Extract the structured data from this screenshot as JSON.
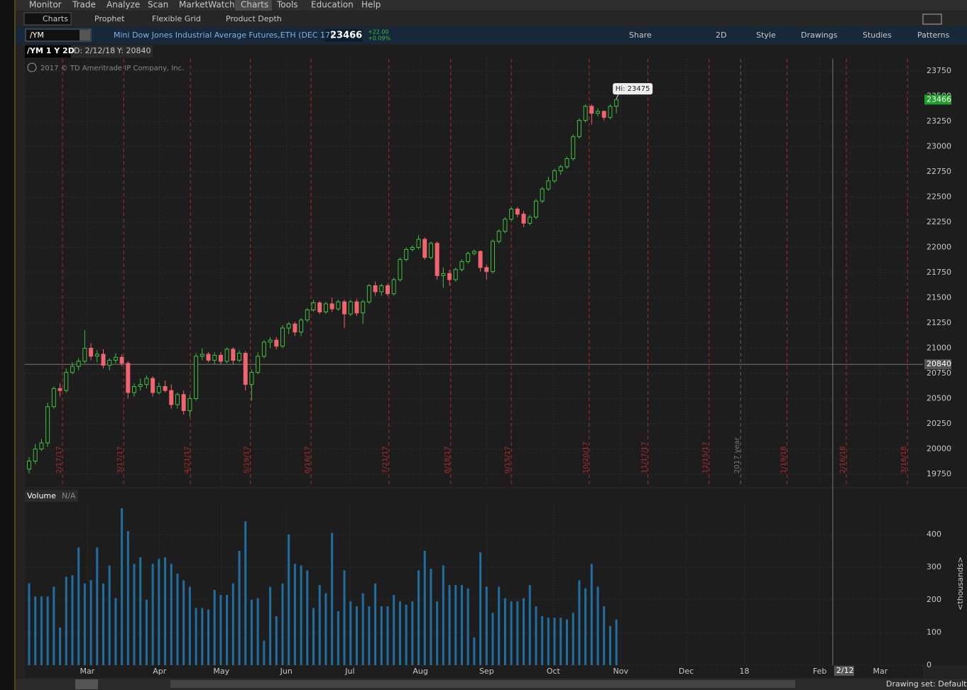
{
  "ui": {
    "menu": [
      "Monitor",
      "Trade",
      "Analyze",
      "Scan",
      "MarketWatch",
      "Charts",
      "Tools",
      "Education",
      "Help"
    ],
    "tabs": [
      "Charts",
      "Prophet",
      "Flexible Grid",
      "Product Depth"
    ],
    "symbol": "/YM",
    "description": "Mini Dow Jones Industrial Average Futures,ETH (DEC 17)",
    "last_price": "23466",
    "change": "+22.00",
    "change_pct": "+0.09%",
    "tools": [
      "Share",
      "2D",
      "Style",
      "Drawings",
      "Studies",
      "Patterns"
    ],
    "drawing_set": "Drawing set: Default"
  },
  "chart_data": [
    {
      "type": "candlestick",
      "title": "/YM 1 Y 2D",
      "cursor_date": "D: 2/12/18",
      "cursor_value": "Y: 20840",
      "copyright": "2017 © TD Ameritrade IP Company, Inc.",
      "up_color": "#3fbf3f",
      "down_color": "#f06470",
      "date_line_color": "#b02a2a",
      "open": [
        19800,
        19880,
        20000,
        20060,
        20420,
        20600,
        20580,
        20760,
        20820,
        20870,
        21000,
        20920,
        20940,
        20830,
        20880,
        20910,
        20850,
        20560,
        20620,
        20640,
        20700,
        20560,
        20620,
        20580,
        20440,
        20540,
        20380,
        20500,
        20920,
        20940,
        20880,
        20930,
        20870,
        20990,
        20880,
        20950,
        20640,
        20760,
        20920,
        21060,
        21080,
        21020,
        21200,
        21240,
        21160,
        21280,
        21380,
        21450,
        21360,
        21440,
        21390,
        21460,
        21340,
        21460,
        21350,
        21460,
        21620,
        21560,
        21620,
        21540,
        21680,
        21880,
        21980,
        22000,
        22080,
        21900,
        22040,
        21720,
        21740,
        21680,
        21780,
        21860,
        21940,
        21960,
        21800,
        21760,
        22060,
        22160,
        22280,
        22380,
        22330,
        22240,
        22300,
        22460,
        22580,
        22660,
        22760,
        22800,
        22880,
        23100,
        23260,
        23400,
        23330,
        23350,
        23290,
        23400
      ],
      "high": [
        19920,
        20050,
        20100,
        20460,
        20620,
        20650,
        20800,
        20860,
        20900,
        21180,
        21050,
        20980,
        20990,
        20900,
        20950,
        20940,
        20870,
        20650,
        20700,
        20730,
        20720,
        20660,
        20680,
        20640,
        20560,
        20580,
        20540,
        20950,
        21000,
        20960,
        20960,
        20960,
        21010,
        21010,
        20980,
        20970,
        20790,
        20960,
        21080,
        21110,
        21110,
        21230,
        21260,
        21260,
        21300,
        21400,
        21480,
        21470,
        21460,
        21500,
        21480,
        21480,
        21480,
        21490,
        21480,
        21640,
        21660,
        21640,
        21640,
        21700,
        21900,
        22000,
        22020,
        22120,
        22100,
        22060,
        22060,
        21800,
        21780,
        21800,
        21880,
        21960,
        21980,
        21970,
        21830,
        22080,
        22180,
        22300,
        22400,
        22400,
        22360,
        22320,
        22480,
        22600,
        22700,
        22780,
        22820,
        22900,
        23120,
        23280,
        23420,
        23420,
        23380,
        23360,
        23420,
        23475
      ],
      "low": [
        19760,
        19850,
        19980,
        20020,
        20400,
        20520,
        20560,
        20740,
        20780,
        20850,
        20880,
        20860,
        20800,
        20780,
        20850,
        20820,
        20500,
        20520,
        20580,
        20600,
        20520,
        20540,
        20560,
        20400,
        20400,
        20340,
        20320,
        20480,
        20880,
        20860,
        20840,
        20840,
        20850,
        20840,
        20860,
        20580,
        20480,
        20740,
        20900,
        21000,
        20990,
        21000,
        21140,
        21120,
        21120,
        21260,
        21360,
        21340,
        21340,
        21360,
        21370,
        21200,
        21320,
        21320,
        21240,
        21440,
        21520,
        21520,
        21520,
        21520,
        21660,
        21860,
        21960,
        21980,
        21880,
        21880,
        21680,
        21600,
        21620,
        21660,
        21760,
        21840,
        21920,
        21760,
        21680,
        21740,
        22040,
        22140,
        22260,
        22300,
        22200,
        22220,
        22280,
        22440,
        22560,
        22640,
        22720,
        22780,
        22860,
        23080,
        23240,
        23220,
        23300,
        23260,
        23270,
        23330
      ],
      "close": [
        19880,
        20000,
        20060,
        20420,
        20600,
        20580,
        20760,
        20820,
        20870,
        21000,
        20920,
        20940,
        20830,
        20880,
        20910,
        20850,
        20560,
        20620,
        20640,
        20700,
        20560,
        20620,
        20580,
        20440,
        20540,
        20380,
        20500,
        20920,
        20940,
        20880,
        20930,
        20870,
        20990,
        20880,
        20950,
        20640,
        20760,
        20920,
        21060,
        21080,
        21020,
        21200,
        21240,
        21160,
        21280,
        21380,
        21450,
        21360,
        21440,
        21390,
        21460,
        21340,
        21460,
        21350,
        21460,
        21620,
        21560,
        21620,
        21540,
        21680,
        21880,
        21980,
        22000,
        22080,
        21900,
        22040,
        21720,
        21740,
        21680,
        21780,
        21860,
        21940,
        21960,
        21800,
        21760,
        22060,
        22160,
        22280,
        22380,
        22330,
        22240,
        22300,
        22460,
        22580,
        22660,
        22760,
        22800,
        22880,
        23100,
        23260,
        23400,
        23330,
        23350,
        23290,
        23400,
        23466
      ],
      "xlim": [
        -0.69,
        144.6
      ],
      "ylim": [
        19630,
        23870
      ],
      "yticks": [
        19750,
        20000,
        20250,
        20500,
        20750,
        21000,
        21250,
        21500,
        21750,
        22000,
        22250,
        22500,
        22750,
        23000,
        23250,
        23500,
        23750
      ],
      "date_lines": [
        {
          "value": 5.4,
          "label": "2/17/17"
        },
        {
          "value": 15.3,
          "label": "3/17/17"
        },
        {
          "value": 26.1,
          "label": "4/21/17"
        },
        {
          "value": 35.8,
          "label": "5/19/17"
        },
        {
          "value": 45.6,
          "label": "6/16/17"
        },
        {
          "value": 58.2,
          "label": "7/21/17"
        },
        {
          "value": 68.2,
          "label": "8/18/17"
        },
        {
          "value": 78,
          "label": "9/15/17"
        },
        {
          "value": 90.6,
          "label": "10/20/17"
        },
        {
          "value": 100.1,
          "label": "11/17/17"
        },
        {
          "value": 110,
          "label": "12/15/17"
        },
        {
          "value": 122.6,
          "label": "1/19/18"
        },
        {
          "value": 132.2,
          "label": "2/16/18"
        },
        {
          "value": 142.1,
          "label": "3/16/18"
        }
      ],
      "year_line": {
        "value": 115.1,
        "label": "2017 year"
      },
      "high_marker": {
        "value": 23475,
        "label": "Hi: 23475"
      },
      "last": 23466,
      "crosshair": {
        "x": 130,
        "y": 20840,
        "x_label": "2/12"
      }
    },
    {
      "type": "bar",
      "title": "Volume",
      "subtitle": "N/A",
      "color": "#1f6fa3",
      "y_label": "<thousands>",
      "values": [
        250,
        210,
        210,
        210,
        240,
        115,
        270,
        275,
        360,
        250,
        260,
        360,
        250,
        305,
        205,
        480,
        410,
        310,
        330,
        200,
        310,
        325,
        330,
        310,
        280,
        260,
        240,
        175,
        175,
        170,
        230,
        215,
        215,
        250,
        350,
        440,
        200,
        205,
        75,
        240,
        150,
        250,
        400,
        310,
        305,
        290,
        175,
        245,
        220,
        405,
        165,
        290,
        195,
        180,
        220,
        180,
        250,
        180,
        180,
        215,
        195,
        185,
        195,
        290,
        350,
        295,
        195,
        305,
        245,
        245,
        245,
        235,
        85,
        345,
        240,
        160,
        240,
        205,
        195,
        195,
        205,
        245,
        180,
        150,
        145,
        145,
        145,
        140,
        160,
        260,
        235,
        310,
        240,
        180,
        120,
        140
      ],
      "xlim": [
        -0.69,
        144.6
      ],
      "xticks": [
        {
          "value": 9.4,
          "label": "Mar"
        },
        {
          "value": 21.1,
          "label": "Apr"
        },
        {
          "value": 31.1,
          "label": "May"
        },
        {
          "value": 41.6,
          "label": "Jun"
        },
        {
          "value": 51.9,
          "label": "Jul"
        },
        {
          "value": 63.3,
          "label": "Aug"
        },
        {
          "value": 74,
          "label": "Sep"
        },
        {
          "value": 84.8,
          "label": "Oct"
        },
        {
          "value": 95.7,
          "label": "Nov"
        },
        {
          "value": 106.3,
          "label": "Dec"
        },
        {
          "value": 115.7,
          "label": "18"
        },
        {
          "value": 127.9,
          "label": "Feb"
        },
        {
          "value": 137.7,
          "label": "Mar"
        }
      ],
      "ylim": [
        0,
        493
      ],
      "yticks": [
        0,
        100,
        200,
        300,
        400
      ]
    }
  ]
}
